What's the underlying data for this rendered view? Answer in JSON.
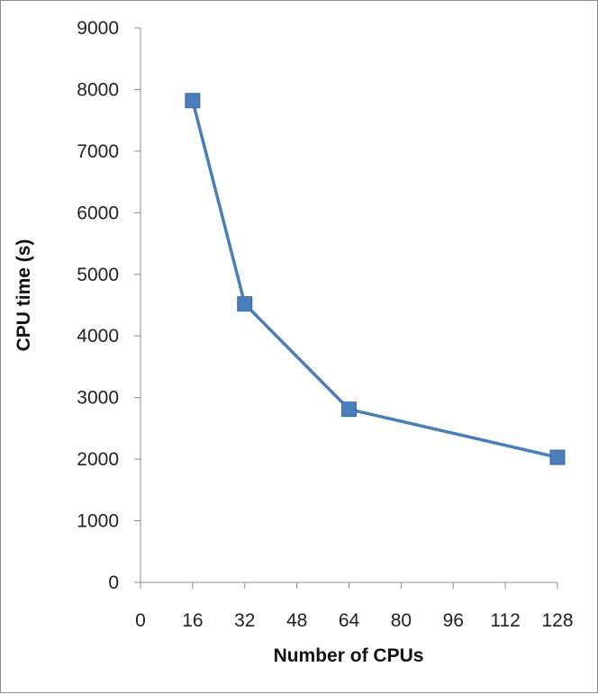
{
  "chart_data": {
    "type": "line",
    "title": "",
    "xlabel": "Number of CPUs",
    "ylabel": "CPU time (s)",
    "xlim": [
      0,
      128
    ],
    "ylim": [
      0,
      9000
    ],
    "x_ticks": [
      0,
      16,
      32,
      48,
      64,
      80,
      96,
      112,
      128
    ],
    "y_ticks": [
      0,
      1000,
      2000,
      3000,
      4000,
      5000,
      6000,
      7000,
      8000,
      9000
    ],
    "grid": false,
    "legend": "none",
    "series": [
      {
        "x": [
          16,
          32,
          64,
          128
        ],
        "y": [
          7820,
          4520,
          2810,
          2030
        ],
        "color": "#4a7ebb",
        "marker": "square"
      }
    ]
  }
}
